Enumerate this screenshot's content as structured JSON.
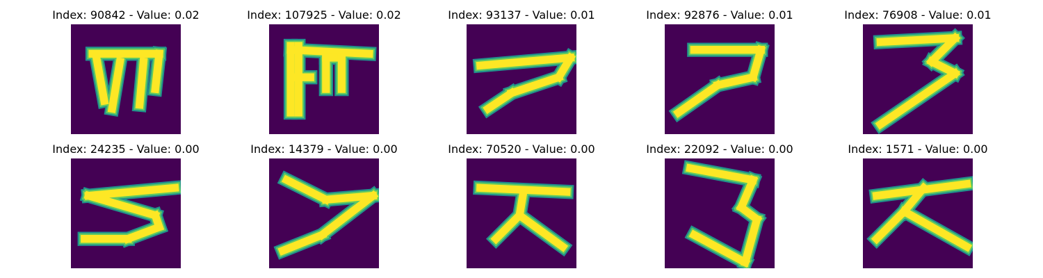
{
  "colors": {
    "background": "#440154",
    "stroke_core": "#fde725",
    "stroke_mid": "#5ec962",
    "stroke_edge": "#21918c"
  },
  "chart_data": [
    {
      "type": "heatmap",
      "title": "Index: 90842 - Value: 0.02",
      "index": 90842,
      "value": 0.02,
      "strokes": [
        [
          [
            5,
            7
          ],
          [
            22,
            7
          ]
        ],
        [
          [
            22,
            7
          ],
          [
            21,
            16
          ]
        ],
        [
          [
            6,
            8
          ],
          [
            8,
            19
          ]
        ],
        [
          [
            12,
            9
          ],
          [
            10,
            21
          ]
        ],
        [
          [
            18,
            9
          ],
          [
            17,
            20
          ]
        ]
      ]
    },
    {
      "type": "heatmap",
      "title": "Index: 107925 - Value: 0.02",
      "index": 107925,
      "value": 0.02,
      "strokes": [
        [
          [
            5,
            6
          ],
          [
            25,
            7
          ]
        ],
        [
          [
            5,
            5
          ],
          [
            5,
            22
          ]
        ],
        [
          [
            7,
            5
          ],
          [
            7,
            22
          ]
        ],
        [
          [
            14,
            8
          ],
          [
            14,
            16
          ]
        ],
        [
          [
            14,
            8
          ],
          [
            18,
            8
          ]
        ],
        [
          [
            18,
            8
          ],
          [
            18,
            16
          ]
        ],
        [
          [
            6,
            13
          ],
          [
            10,
            13
          ]
        ]
      ]
    },
    {
      "type": "heatmap",
      "title": "Index: 93137 - Value: 0.01",
      "index": 93137,
      "value": 0.01,
      "strokes": [
        [
          [
            3,
            10
          ],
          [
            26,
            8
          ]
        ],
        [
          [
            26,
            8
          ],
          [
            23,
            13
          ]
        ],
        [
          [
            23,
            13
          ],
          [
            11,
            17
          ]
        ],
        [
          [
            11,
            17
          ],
          [
            5,
            21
          ]
        ]
      ]
    },
    {
      "type": "heatmap",
      "title": "Index: 92876 - Value: 0.01",
      "index": 92876,
      "value": 0.01,
      "strokes": [
        [
          [
            7,
            6
          ],
          [
            24,
            6
          ]
        ],
        [
          [
            24,
            6
          ],
          [
            22,
            13
          ]
        ],
        [
          [
            22,
            13
          ],
          [
            13,
            15
          ]
        ],
        [
          [
            13,
            15
          ],
          [
            3,
            22
          ]
        ]
      ]
    },
    {
      "type": "heatmap",
      "title": "Index: 76908 - Value: 0.01",
      "index": 76908,
      "value": 0.01,
      "strokes": [
        [
          [
            4,
            4
          ],
          [
            23,
            3
          ]
        ],
        [
          [
            23,
            3
          ],
          [
            17,
            9
          ]
        ],
        [
          [
            17,
            9
          ],
          [
            23,
            12
          ]
        ],
        [
          [
            23,
            12
          ],
          [
            4,
            25
          ]
        ]
      ]
    },
    {
      "type": "heatmap",
      "title": "Index: 24235 - Value: 0.00",
      "index": 24235,
      "value": 0.0,
      "strokes": [
        [
          [
            4,
            9
          ],
          [
            26,
            7
          ]
        ],
        [
          [
            4,
            9
          ],
          [
            21,
            14
          ]
        ],
        [
          [
            21,
            14
          ],
          [
            22,
            17
          ]
        ],
        [
          [
            22,
            17
          ],
          [
            14,
            20
          ]
        ],
        [
          [
            14,
            20
          ],
          [
            3,
            20
          ]
        ]
      ]
    },
    {
      "type": "heatmap",
      "title": "Index: 14379 - Value: 0.00",
      "index": 14379,
      "value": 0.0,
      "strokes": [
        [
          [
            4,
            5
          ],
          [
            14,
            10
          ]
        ],
        [
          [
            14,
            10
          ],
          [
            26,
            9
          ]
        ],
        [
          [
            26,
            9
          ],
          [
            13,
            19
          ]
        ],
        [
          [
            13,
            19
          ],
          [
            3,
            23
          ]
        ]
      ]
    },
    {
      "type": "heatmap",
      "title": "Index: 70520 - Value: 0.00",
      "index": 70520,
      "value": 0.0,
      "strokes": [
        [
          [
            3,
            7
          ],
          [
            25,
            8
          ]
        ],
        [
          [
            14,
            8
          ],
          [
            13,
            14
          ]
        ],
        [
          [
            13,
            14
          ],
          [
            7,
            20
          ]
        ],
        [
          [
            13,
            14
          ],
          [
            24,
            22
          ]
        ]
      ]
    },
    {
      "type": "heatmap",
      "title": "Index: 22092 - Value: 0.00",
      "index": 22092,
      "value": 0.0,
      "strokes": [
        [
          [
            6,
            2
          ],
          [
            22,
            5
          ]
        ],
        [
          [
            22,
            5
          ],
          [
            19,
            12
          ]
        ],
        [
          [
            19,
            12
          ],
          [
            23,
            15
          ]
        ],
        [
          [
            23,
            15
          ],
          [
            20,
            26
          ]
        ],
        [
          [
            20,
            26
          ],
          [
            7,
            19
          ]
        ]
      ]
    },
    {
      "type": "heatmap",
      "title": "Index: 1571 - Value: 0.00",
      "index": 1571,
      "value": 0.0,
      "strokes": [
        [
          [
            3,
            9
          ],
          [
            26,
            6
          ]
        ],
        [
          [
            15,
            7
          ],
          [
            10,
            13
          ]
        ],
        [
          [
            10,
            13
          ],
          [
            3,
            20
          ]
        ],
        [
          [
            10,
            13
          ],
          [
            26,
            22
          ]
        ]
      ]
    }
  ]
}
